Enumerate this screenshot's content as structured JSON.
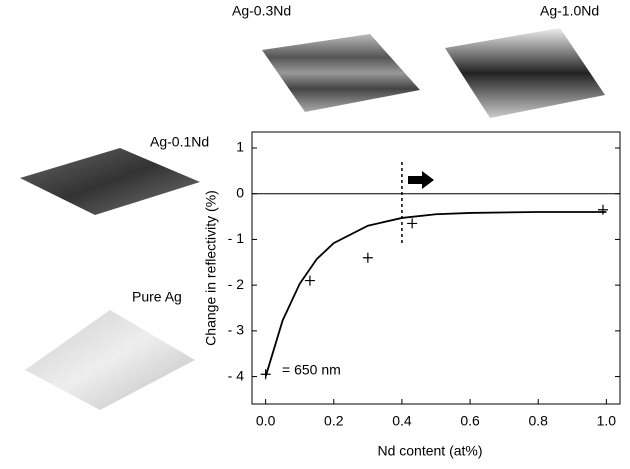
{
  "images": [
    "Ag-0.3Nd",
    "Ag-1.0Nd",
    "Ag-0.1Nd",
    "Pure Ag"
  ],
  "chart_data": {
    "type": "scatter",
    "xlabel": "Nd content (at%)",
    "ylabel": "Change in reflectivity (%)",
    "annotation": "= 650 nm",
    "xlim": [
      -0.04,
      1.04
    ],
    "ylim": [
      -4.6,
      1.35
    ],
    "xticks": [
      {
        "value": 0,
        "label": "0.0"
      },
      0.2,
      0.4,
      0.6,
      0.8,
      {
        "value": 1,
        "label": "1.0"
      }
    ],
    "yticks": [
      {
        "value": -4,
        "label": "- 4"
      },
      {
        "value": -3,
        "label": "- 3"
      },
      {
        "value": -2,
        "label": "- 2"
      },
      {
        "value": -1,
        "label": "- 1"
      },
      0,
      1
    ],
    "hline": 0,
    "vline": 0.4,
    "series": [
      {
        "type": "scatter",
        "color": "#000000",
        "x": [
          0,
          0.13,
          0.3,
          0.43,
          0.99
        ],
        "values": [
          -3.95,
          -1.9,
          -1.4,
          -0.65,
          -0.35
        ]
      },
      {
        "type": "line",
        "color": "#000000",
        "x": [
          0,
          0.05,
          0.1,
          0.15,
          0.2,
          0.3,
          0.4,
          0.5,
          0.6,
          0.8,
          1.0
        ],
        "values": [
          -4.0,
          -2.77,
          -1.97,
          -1.43,
          -1.08,
          -0.7,
          -0.53,
          -0.45,
          -0.42,
          -0.4,
          -0.4
        ]
      }
    ]
  }
}
